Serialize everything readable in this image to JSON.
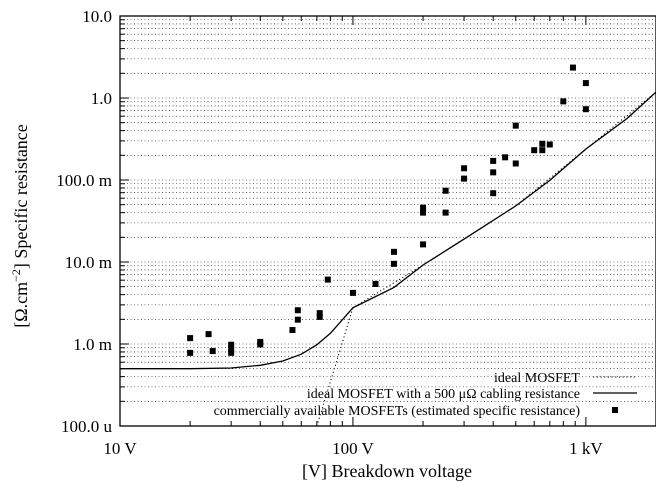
{
  "chart_data": {
    "type": "scatter",
    "xlabel": "[V] Breakdown voltage",
    "ylabel": "[Ω.cm−2] Specific resistance",
    "ylabel_parts": {
      "prefix": "[Ω.cm",
      "sup": "−2",
      "suffix": "] Specific resistance"
    },
    "xscale": "log",
    "yscale": "log",
    "xlim": [
      10,
      2000
    ],
    "ylim": [
      0.0001,
      10
    ],
    "grid": "y-dotted",
    "legend_position": "bottom-right",
    "x_ticks": [
      {
        "value": 10,
        "label": "10  V"
      },
      {
        "value": 100,
        "label": "100  V"
      },
      {
        "value": 1000,
        "label": "1 kV"
      }
    ],
    "y_ticks": [
      {
        "value": 10,
        "label": "10.0"
      },
      {
        "value": 1,
        "label": "1.0"
      },
      {
        "value": 0.1,
        "label": "100.0 m"
      },
      {
        "value": 0.01,
        "label": "10.0 m"
      },
      {
        "value": 0.001,
        "label": "1.0 m"
      },
      {
        "value": 0.0001,
        "label": "100.0 u"
      }
    ],
    "series": [
      {
        "name": "ideal MOSFET",
        "kind": "line",
        "style": "dotted",
        "color": "#000000",
        "points": [
          [
            70,
            0.0001
          ],
          [
            100,
            0.00276
          ],
          [
            200,
            0.0092
          ],
          [
            500,
            0.0483
          ],
          [
            1000,
            0.239
          ],
          [
            2000,
            1.18
          ]
        ]
      },
      {
        "name": "ideal MOSFET with a 500 μΩ cabling resistance",
        "kind": "line",
        "style": "solid",
        "color": "#000000",
        "points": [
          [
            10,
            0.0005
          ],
          [
            20,
            0.0005
          ],
          [
            30,
            0.00051
          ],
          [
            40,
            0.00055
          ],
          [
            50,
            0.00062
          ],
          [
            60,
            0.00075
          ],
          [
            70,
            0.00098
          ],
          [
            80,
            0.00135
          ],
          [
            100,
            0.00276
          ],
          [
            150,
            0.0049
          ],
          [
            200,
            0.0092
          ],
          [
            300,
            0.019
          ],
          [
            500,
            0.0483
          ],
          [
            700,
            0.099
          ],
          [
            1000,
            0.239
          ],
          [
            1500,
            0.56
          ],
          [
            2000,
            1.18
          ]
        ]
      },
      {
        "name": "commercially available MOSFETs (estimated specific resistance)",
        "kind": "scatter",
        "marker": "square",
        "color": "#000000",
        "points": [
          [
            20,
            0.00118
          ],
          [
            20,
            0.00078
          ],
          [
            24,
            0.00132
          ],
          [
            25,
            0.00082
          ],
          [
            30,
            0.00098
          ],
          [
            30,
            0.00087
          ],
          [
            30,
            0.00078
          ],
          [
            40,
            0.00106
          ],
          [
            40,
            0.00099
          ],
          [
            55,
            0.00148
          ],
          [
            58,
            0.00198
          ],
          [
            58,
            0.00258
          ],
          [
            72,
            0.00238
          ],
          [
            72,
            0.00214
          ],
          [
            78,
            0.0061
          ],
          [
            100,
            0.0042
          ],
          [
            125,
            0.0054
          ],
          [
            150,
            0.0133
          ],
          [
            150,
            0.0095
          ],
          [
            200,
            0.046
          ],
          [
            200,
            0.04
          ],
          [
            200,
            0.0164
          ],
          [
            250,
            0.074
          ],
          [
            250,
            0.04
          ],
          [
            300,
            0.139
          ],
          [
            300,
            0.104
          ],
          [
            400,
            0.171
          ],
          [
            400,
            0.124
          ],
          [
            400,
            0.069
          ],
          [
            450,
            0.189
          ],
          [
            500,
            0.46
          ],
          [
            500,
            0.159
          ],
          [
            600,
            0.231
          ],
          [
            650,
            0.276
          ],
          [
            650,
            0.231
          ],
          [
            700,
            0.271
          ],
          [
            800,
            0.91
          ],
          [
            880,
            2.35
          ],
          [
            1000,
            1.52
          ],
          [
            1000,
            0.73
          ]
        ]
      }
    ]
  }
}
